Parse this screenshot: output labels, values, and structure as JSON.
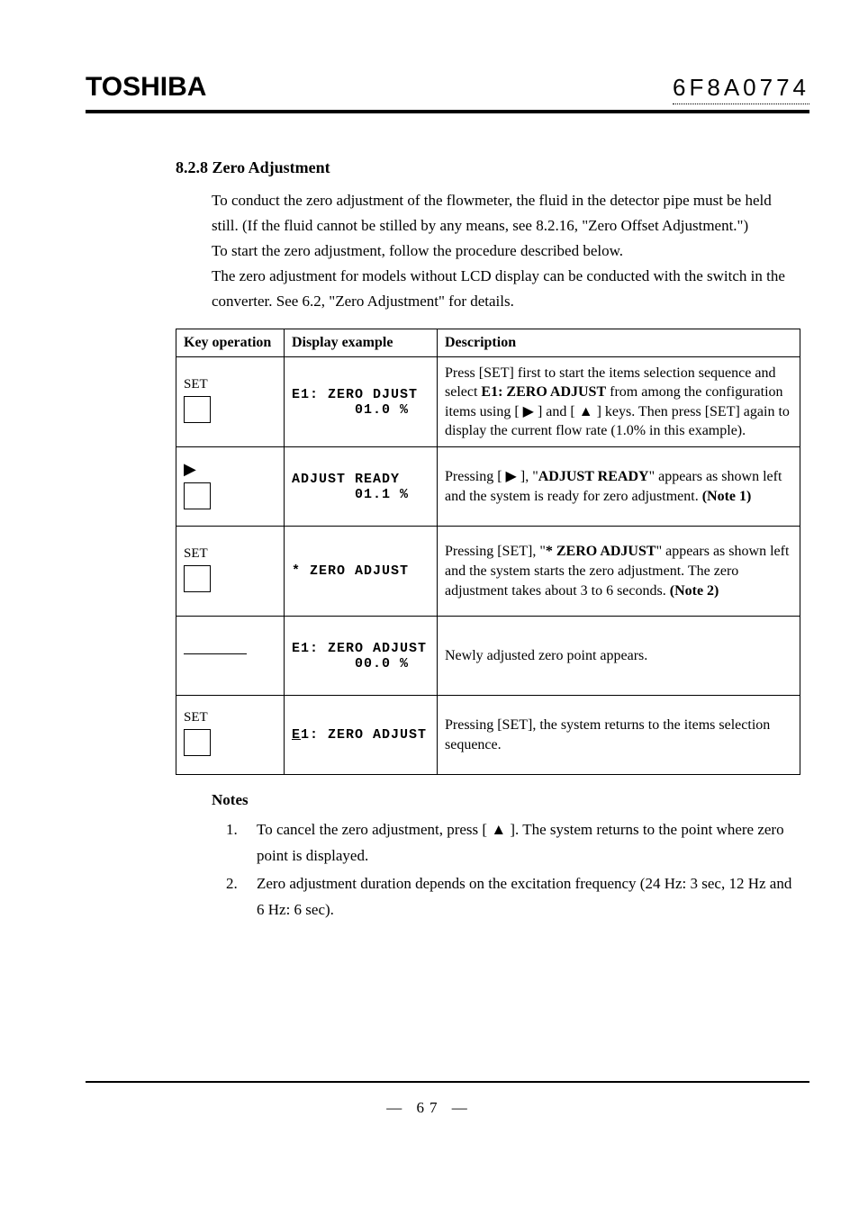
{
  "header": {
    "brand": "TOSHIBA",
    "docnum": "6F8A0774"
  },
  "section": {
    "number": "8.2.8",
    "title": "Zero Adjustment",
    "intro_lines": [
      "To conduct the zero adjustment of the flowmeter, the fluid in the detector pipe must be held still.   (If the fluid cannot be stilled by any means, see 8.2.16, \"Zero Offset Adjustment.\")",
      "To start the zero adjustment, follow the procedure described below.",
      "The zero adjustment for models without LCD display can be conducted with the switch in the converter. See 6.2, \"Zero Adjustment\" for details."
    ]
  },
  "table": {
    "headers": [
      "Key operation",
      "Display example",
      "Description"
    ],
    "rows": [
      {
        "key_type": "set",
        "key_label": "SET",
        "display": "E1: ZERO DJUST\n       01.0 %",
        "desc_html": "Press [SET] first to start the items selection sequence and select <b>E1: ZERO ADJUST</b> from among the configuration items using [ ▶ ] and [ ▲ ] keys. Then press [SET] again to display the current flow rate (1.0% in this example)."
      },
      {
        "key_type": "arrow",
        "key_label": "▶",
        "display": "ADJUST READY\n       01.1 %",
        "desc_html": "Pressing [ ▶ ], \"<b>ADJUST READY</b>\" appears as shown left and the system is ready for zero adjustment. <b>(Note 1)</b>"
      },
      {
        "key_type": "set",
        "key_label": "SET",
        "display": "* ZERO ADJUST",
        "desc_html": "Pressing [SET], \"<b>* ZERO ADJUST</b>\" appears as shown left and the system starts the zero adjustment. The zero adjustment takes about 3 to 6 seconds. <b>(Note 2)</b>"
      },
      {
        "key_type": "line",
        "key_label": "",
        "display": "E1: ZERO ADJUST\n       00.0 %",
        "desc_html": "Newly adjusted zero point appears."
      },
      {
        "key_type": "set",
        "key_label": "SET",
        "display_html": "<span class=\"ul\">E</span>1: ZERO ADJUST",
        "desc_html": "Pressing [SET], the system returns to the items selection sequence."
      }
    ]
  },
  "notes": {
    "title": "Notes",
    "items": [
      {
        "n": "1.",
        "text": "To cancel the zero adjustment, press [ ▲ ]. The system returns to the point where zero point is displayed."
      },
      {
        "n": "2.",
        "text": "Zero adjustment duration depends on the excitation frequency (24 Hz: 3 sec, 12 Hz and 6 Hz: 6 sec)."
      }
    ]
  },
  "footer": {
    "page": "—   67   —"
  }
}
